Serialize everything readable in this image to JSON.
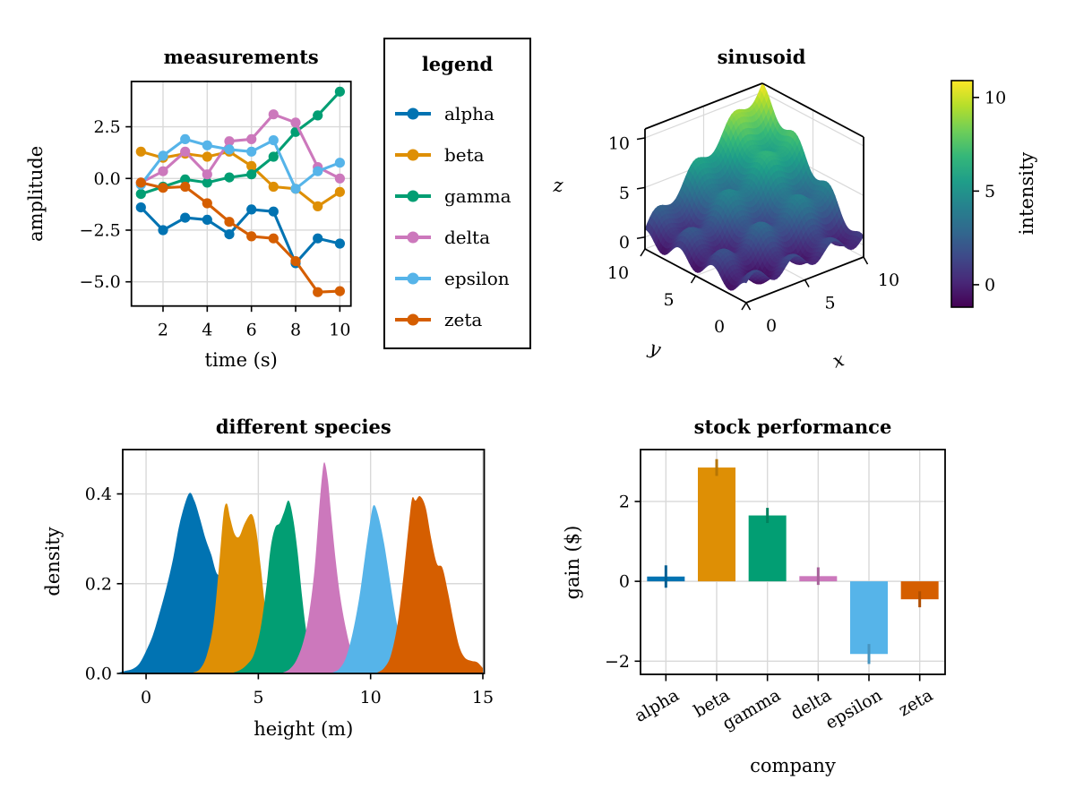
{
  "figure": {
    "background": "#ffffff",
    "text_color": "#000000",
    "grid_color": "#d9d9d9",
    "spine_color": "#000000"
  },
  "palette": [
    "#0173B2",
    "#DE8F05",
    "#029E73",
    "#CC78BC",
    "#56B4E9",
    "#D55E00"
  ],
  "chart_data": [
    {
      "id": "measurements",
      "type": "line",
      "title": "measurements",
      "xlabel": "time (s)",
      "ylabel": "amplitude",
      "x": [
        1,
        2,
        3,
        4,
        5,
        6,
        7,
        8,
        9,
        10
      ],
      "series": [
        {
          "name": "alpha",
          "color": "#0173B2",
          "values": [
            -1.4,
            -2.5,
            -1.9,
            -2.0,
            -2.7,
            -1.5,
            -1.6,
            -4.1,
            -2.9,
            -3.15
          ]
        },
        {
          "name": "beta",
          "color": "#DE8F05",
          "values": [
            1.3,
            1.0,
            1.2,
            1.05,
            1.3,
            0.6,
            -0.4,
            -0.5,
            -1.35,
            -0.65
          ]
        },
        {
          "name": "gamma",
          "color": "#029E73",
          "values": [
            -0.75,
            -0.4,
            -0.05,
            -0.2,
            0.05,
            0.2,
            1.05,
            2.25,
            3.05,
            4.2
          ]
        },
        {
          "name": "delta",
          "color": "#CC78BC",
          "values": [
            -0.2,
            0.35,
            1.3,
            0.2,
            1.8,
            1.9,
            3.1,
            2.7,
            0.55,
            0.0
          ]
        },
        {
          "name": "epsilon",
          "color": "#56B4E9",
          "values": [
            -0.3,
            1.1,
            1.9,
            1.6,
            1.4,
            1.3,
            1.85,
            -0.5,
            0.35,
            0.76
          ]
        },
        {
          "name": "zeta",
          "color": "#D55E00",
          "values": [
            -0.2,
            -0.45,
            -0.4,
            -1.2,
            -2.1,
            -2.8,
            -2.9,
            -4.0,
            -5.5,
            -5.45
          ]
        }
      ],
      "xticks": {
        "values": [
          2,
          4,
          6,
          8,
          10
        ],
        "labels": [
          "2",
          "4",
          "6",
          "8",
          "10"
        ]
      },
      "yticks": {
        "values": [
          2.5,
          0.0,
          -2.5,
          -5.0
        ],
        "labels": [
          "2.5",
          "0.0",
          "−2.5",
          "−5.0"
        ]
      },
      "xlim": [
        0.57,
        10.5
      ],
      "ylim": [
        -6.17,
        4.69
      ],
      "grid": true,
      "marker": "circle"
    },
    {
      "id": "legend-panel",
      "type": "legend",
      "title": "legend",
      "entries": [
        {
          "label": "alpha",
          "color": "#0173B2"
        },
        {
          "label": "beta",
          "color": "#DE8F05"
        },
        {
          "label": "gamma",
          "color": "#029E73"
        },
        {
          "label": "delta",
          "color": "#CC78BC"
        },
        {
          "label": "epsilon",
          "color": "#56B4E9"
        },
        {
          "label": "zeta",
          "color": "#D55E00"
        }
      ]
    },
    {
      "id": "sinusoid",
      "type": "surface3d",
      "title": "sinusoid",
      "xlabel": "x",
      "ylabel": "y",
      "zlabel": "z",
      "xticks": {
        "values": [
          0,
          5,
          10
        ],
        "labels": [
          "0",
          "5",
          "10"
        ]
      },
      "yticks": {
        "values": [
          0,
          5,
          10
        ],
        "labels": [
          "0",
          "5",
          "10"
        ]
      },
      "zticks": {
        "values": [
          0,
          5,
          10
        ],
        "labels": [
          "0",
          "5",
          "10"
        ]
      },
      "surface": {
        "x_range": [
          0,
          10
        ],
        "y_range": [
          0,
          10
        ],
        "zlim": [
          -1.2,
          10.9
        ],
        "grid_n": 46,
        "z_model": {
          "type": "xy_product_plus_waves",
          "xy_scale": 0.1,
          "wave_amp": 0.8,
          "wave_freq": 1.9
        },
        "description": "z ≈ x·y/10 + 0.8·sin(1.9x) + 0.8·cos(1.9y)"
      },
      "colorbar": {
        "label": "intensity",
        "ticks": {
          "values": [
            0,
            5,
            10
          ],
          "labels": [
            "0",
            "5",
            "10"
          ]
        },
        "vmin": -1.2,
        "vmax": 10.9,
        "colormap": "viridis",
        "stops": [
          "#440154",
          "#482878",
          "#3e4a89",
          "#31688e",
          "#26828e",
          "#1f9e89",
          "#35b779",
          "#6ece58",
          "#b5de2b",
          "#fde725"
        ]
      }
    },
    {
      "id": "species",
      "type": "area",
      "title": "different species",
      "xlabel": "height (m)",
      "ylabel": "density",
      "xticks": {
        "values": [
          0,
          5,
          10,
          15
        ],
        "labels": [
          "0",
          "5",
          "10",
          "15"
        ]
      },
      "yticks": {
        "values": [
          0.0,
          0.2,
          0.4
        ],
        "labels": [
          "0.0",
          "0.2",
          "0.4"
        ]
      },
      "xlim": [
        -1.04,
        15.06
      ],
      "ylim": [
        0,
        0.4988
      ],
      "series": [
        {
          "name": "alpha",
          "color": "#0173B2",
          "points": [
            [
              -1.2,
              0.002
            ],
            [
              -0.9,
              0.006
            ],
            [
              -0.6,
              0.01
            ],
            [
              -0.3,
              0.022
            ],
            [
              0,
              0.05
            ],
            [
              0.3,
              0.085
            ],
            [
              0.6,
              0.135
            ],
            [
              0.9,
              0.19
            ],
            [
              1.2,
              0.255
            ],
            [
              1.5,
              0.335
            ],
            [
              1.9,
              0.4
            ],
            [
              2.15,
              0.385
            ],
            [
              2.4,
              0.345
            ],
            [
              2.65,
              0.3
            ],
            [
              2.9,
              0.265
            ],
            [
              3.2,
              0.22
            ],
            [
              3.6,
              0.245
            ],
            [
              3.9,
              0.1
            ],
            [
              4.2,
              0.03
            ],
            [
              4.5,
              0.005
            ]
          ]
        },
        {
          "name": "beta",
          "color": "#DE8F05",
          "points": [
            [
              2.1,
              0.002
            ],
            [
              2.4,
              0.01
            ],
            [
              2.7,
              0.04
            ],
            [
              3.0,
              0.11
            ],
            [
              3.25,
              0.24
            ],
            [
              3.45,
              0.355
            ],
            [
              3.6,
              0.378
            ],
            [
              3.75,
              0.345
            ],
            [
              3.95,
              0.31
            ],
            [
              4.15,
              0.305
            ],
            [
              4.4,
              0.335
            ],
            [
              4.7,
              0.355
            ],
            [
              4.9,
              0.32
            ],
            [
              5.1,
              0.24
            ],
            [
              5.3,
              0.15
            ],
            [
              5.55,
              0.07
            ],
            [
              5.8,
              0.025
            ],
            [
              6.1,
              0.007
            ],
            [
              6.4,
              0.002
            ]
          ]
        },
        {
          "name": "gamma",
          "color": "#029E73",
          "points": [
            [
              3.9,
              0.002
            ],
            [
              4.2,
              0.008
            ],
            [
              4.5,
              0.02
            ],
            [
              4.8,
              0.042
            ],
            [
              5.1,
              0.1
            ],
            [
              5.35,
              0.19
            ],
            [
              5.55,
              0.28
            ],
            [
              5.75,
              0.325
            ],
            [
              5.95,
              0.335
            ],
            [
              6.15,
              0.36
            ],
            [
              6.35,
              0.385
            ],
            [
              6.55,
              0.345
            ],
            [
              6.75,
              0.27
            ],
            [
              6.95,
              0.17
            ],
            [
              7.15,
              0.09
            ],
            [
              7.4,
              0.035
            ],
            [
              7.7,
              0.01
            ],
            [
              8.0,
              0.002
            ]
          ]
        },
        {
          "name": "delta",
          "color": "#CC78BC",
          "points": [
            [
              6.1,
              0.002
            ],
            [
              6.4,
              0.01
            ],
            [
              6.7,
              0.03
            ],
            [
              7.0,
              0.07
            ],
            [
              7.25,
              0.13
            ],
            [
              7.5,
              0.23
            ],
            [
              7.7,
              0.36
            ],
            [
              7.85,
              0.445
            ],
            [
              7.95,
              0.47
            ],
            [
              8.1,
              0.43
            ],
            [
              8.25,
              0.35
            ],
            [
              8.45,
              0.25
            ],
            [
              8.65,
              0.17
            ],
            [
              8.9,
              0.1
            ],
            [
              9.15,
              0.05
            ],
            [
              9.45,
              0.02
            ],
            [
              9.8,
              0.006
            ],
            [
              10.1,
              0.002
            ]
          ]
        },
        {
          "name": "epsilon",
          "color": "#56B4E9",
          "points": [
            [
              8.3,
              0.002
            ],
            [
              8.6,
              0.01
            ],
            [
              8.9,
              0.035
            ],
            [
              9.2,
              0.09
            ],
            [
              9.5,
              0.17
            ],
            [
              9.75,
              0.26
            ],
            [
              10.0,
              0.345
            ],
            [
              10.15,
              0.375
            ],
            [
              10.35,
              0.35
            ],
            [
              10.6,
              0.29
            ],
            [
              10.85,
              0.21
            ],
            [
              11.1,
              0.13
            ],
            [
              11.35,
              0.07
            ],
            [
              11.6,
              0.03
            ],
            [
              11.9,
              0.01
            ],
            [
              12.2,
              0.003
            ]
          ]
        },
        {
          "name": "zeta",
          "color": "#D55E00",
          "points": [
            [
              10.3,
              0.002
            ],
            [
              10.6,
              0.012
            ],
            [
              10.9,
              0.04
            ],
            [
              11.2,
              0.11
            ],
            [
              11.45,
              0.21
            ],
            [
              11.7,
              0.33
            ],
            [
              11.85,
              0.39
            ],
            [
              12.0,
              0.385
            ],
            [
              12.2,
              0.395
            ],
            [
              12.45,
              0.37
            ],
            [
              12.7,
              0.3
            ],
            [
              12.95,
              0.245
            ],
            [
              13.2,
              0.235
            ],
            [
              13.45,
              0.18
            ],
            [
              13.7,
              0.115
            ],
            [
              13.95,
              0.06
            ],
            [
              14.2,
              0.035
            ],
            [
              14.5,
              0.028
            ],
            [
              14.75,
              0.025
            ],
            [
              15.0,
              0.012
            ]
          ]
        }
      ]
    },
    {
      "id": "stock",
      "type": "bar",
      "title": "stock performance",
      "xlabel": "company",
      "ylabel": "gain ($)",
      "categories": [
        "alpha",
        "beta",
        "gamma",
        "delta",
        "epsilon",
        "zeta"
      ],
      "values": [
        0.12,
        2.85,
        1.65,
        0.13,
        -1.82,
        -0.45
      ],
      "errors": [
        0.28,
        0.21,
        0.19,
        0.22,
        0.25,
        0.2
      ],
      "colors": [
        "#0173B2",
        "#DE8F05",
        "#029E73",
        "#CC78BC",
        "#56B4E9",
        "#D55E00"
      ],
      "yticks": {
        "values": [
          2,
          0,
          -2
        ],
        "labels": [
          "2",
          "0",
          "−2"
        ]
      },
      "ylim": [
        -2.33,
        3.3
      ],
      "grid": true
    }
  ]
}
